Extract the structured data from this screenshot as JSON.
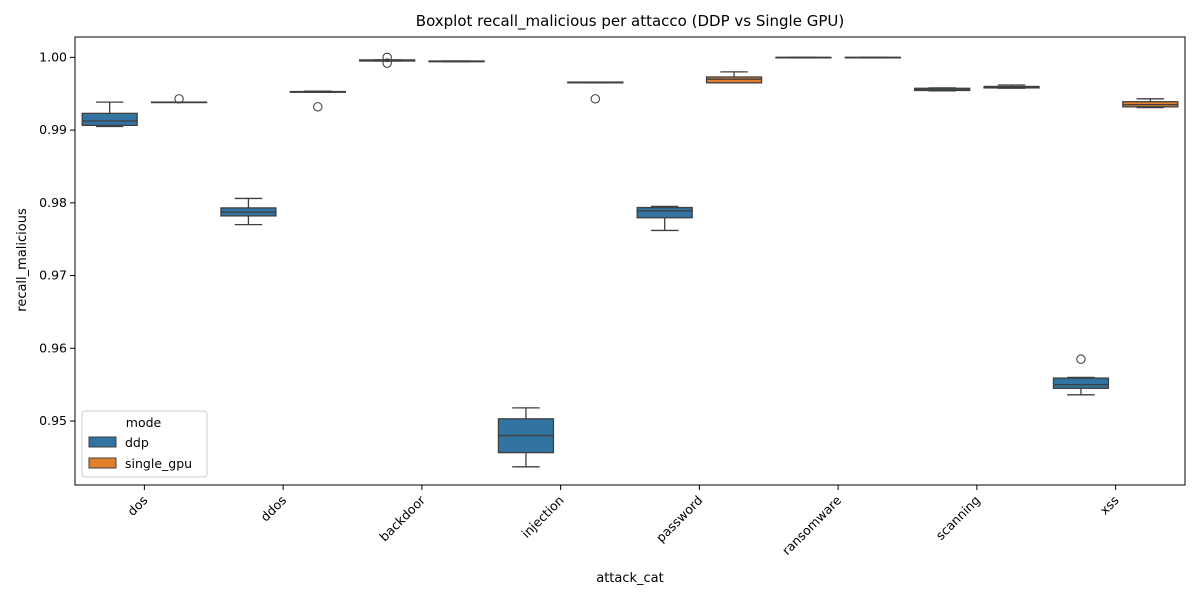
{
  "chart_data": {
    "type": "boxplot",
    "title": "Boxplot recall_malicious per attacco (DDP vs Single GPU)",
    "xlabel": "attack_cat",
    "ylabel": "recall_malicious",
    "ylim": [
      0.9412,
      1.0028
    ],
    "yticks": [
      0.95,
      0.96,
      0.97,
      0.98,
      0.99,
      1.0
    ],
    "ytick_labels": [
      "0.95",
      "0.96",
      "0.97",
      "0.98",
      "0.99",
      "1.00"
    ],
    "categories": [
      "dos",
      "ddos",
      "backdoor",
      "injection",
      "password",
      "ransomware",
      "scanning",
      "xss"
    ],
    "grid": false,
    "legend": {
      "title": "mode",
      "placement": "lower-left"
    },
    "series": [
      {
        "name": "ddp",
        "color": "#3274a1",
        "boxes": [
          {
            "whislo": 0.99049,
            "q1": 0.99065,
            "med": 0.99125,
            "q3": 0.9923,
            "whishi": 0.99385,
            "fliers": []
          },
          {
            "whislo": 0.977,
            "q1": 0.9782,
            "med": 0.9787,
            "q3": 0.9793,
            "whishi": 0.9806,
            "fliers": []
          },
          {
            "whislo": 0.9995,
            "q1": 0.9995,
            "med": 0.99955,
            "q3": 0.99965,
            "whishi": 0.99965,
            "fliers": [
              1.0,
              0.9992
            ]
          },
          {
            "whislo": 0.9437,
            "q1": 0.94565,
            "med": 0.948,
            "q3": 0.9503,
            "whishi": 0.9518,
            "fliers": []
          },
          {
            "whislo": 0.9762,
            "q1": 0.97795,
            "med": 0.9789,
            "q3": 0.97935,
            "whishi": 0.9795,
            "fliers": []
          },
          {
            "whislo": 1.0,
            "q1": 1.0,
            "med": 1.0,
            "q3": 1.0,
            "whishi": 1.0,
            "fliers": []
          },
          {
            "whislo": 0.9954,
            "q1": 0.99545,
            "med": 0.99555,
            "q3": 0.99575,
            "whishi": 0.9958,
            "fliers": []
          },
          {
            "whislo": 0.9536,
            "q1": 0.9545,
            "med": 0.955,
            "q3": 0.9559,
            "whishi": 0.956,
            "fliers": [
              0.9585
            ]
          }
        ]
      },
      {
        "name": "single_gpu",
        "color": "#e1812c",
        "boxes": [
          {
            "whislo": 0.99385,
            "q1": 0.99385,
            "med": 0.99385,
            "q3": 0.99385,
            "whishi": 0.99385,
            "fliers": [
              0.9943
            ]
          },
          {
            "whislo": 0.9952,
            "q1": 0.9952,
            "med": 0.99525,
            "q3": 0.9953,
            "whishi": 0.99535,
            "fliers": [
              0.9932
            ]
          },
          {
            "whislo": 0.9994,
            "q1": 0.9994,
            "med": 0.99945,
            "q3": 0.9995,
            "whishi": 0.9995,
            "fliers": []
          },
          {
            "whislo": 0.9965,
            "q1": 0.9965,
            "med": 0.99655,
            "q3": 0.9966,
            "whishi": 0.9966,
            "fliers": [
              0.9943
            ]
          },
          {
            "whislo": 0.9965,
            "q1": 0.9965,
            "med": 0.997,
            "q3": 0.9973,
            "whishi": 0.998,
            "fliers": []
          },
          {
            "whislo": 1.0,
            "q1": 1.0,
            "med": 1.0,
            "q3": 1.0,
            "whishi": 1.0,
            "fliers": []
          },
          {
            "whislo": 0.99575,
            "q1": 0.9958,
            "med": 0.9959,
            "q3": 0.996,
            "whishi": 0.9962,
            "fliers": []
          },
          {
            "whislo": 0.9931,
            "q1": 0.9932,
            "med": 0.9935,
            "q3": 0.9939,
            "whishi": 0.9943,
            "fliers": []
          }
        ]
      }
    ]
  }
}
